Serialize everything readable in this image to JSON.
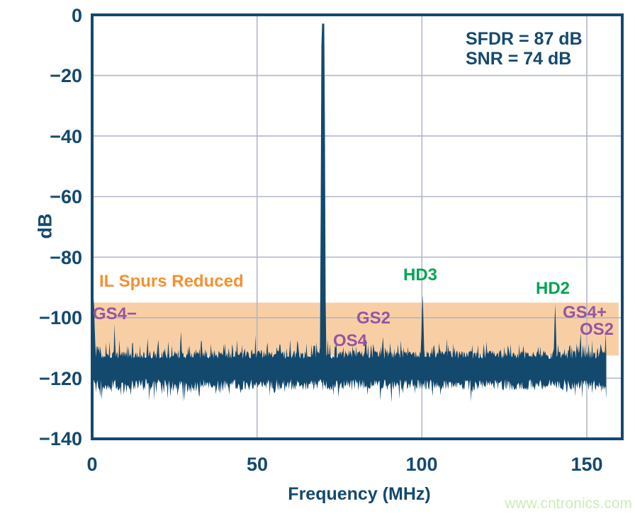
{
  "watermark": {
    "text": "www.cntronics.com",
    "color": "#cdecb9"
  },
  "annotations": {
    "sfdr": "SFDR = 87 dB",
    "snr": "SNR = 74 dB"
  },
  "chart_data": {
    "type": "line",
    "title": "",
    "xlabel": "Frequency (MHz)",
    "ylabel": "dB",
    "xlim": [
      0,
      160.8
    ],
    "ylim": [
      -140,
      0
    ],
    "xtick_labels": [
      "0",
      "50",
      "100",
      "150"
    ],
    "xtick_values": [
      0,
      50,
      100,
      150
    ],
    "ytick_labels": [
      "0",
      "−20",
      "−40",
      "−60",
      "−80",
      "−100",
      "−120",
      "−140"
    ],
    "ytick_values": [
      0,
      -20,
      -40,
      -60,
      -80,
      -100,
      -120,
      -140
    ],
    "grid": true,
    "legend": "none",
    "highlight_band": {
      "label": "IL Spurs Reduced",
      "y_top_db": -95,
      "y_bottom_db": -112.5,
      "color": "#f7c795",
      "label_color": "#f3912f"
    },
    "fundamental": {
      "freq_mhz": 70,
      "level_db": -2.9
    },
    "noise_floor": {
      "top_db": -113.5,
      "bottom_db": -121,
      "mean_db": -117,
      "max_freq_mhz": 156
    },
    "spur_labels": [
      {
        "text": "GS4−",
        "freq_mhz": 6.8,
        "color": "#9655a0"
      },
      {
        "text": "OS4",
        "freq_mhz": 78,
        "color": "#9655a0"
      },
      {
        "text": "GS2",
        "freq_mhz": 85.3,
        "color": "#9655a0"
      },
      {
        "text": "HD3",
        "freq_mhz": 100.2,
        "color": "#00a551"
      },
      {
        "text": "HD2",
        "freq_mhz": 140.4,
        "color": "#00a551"
      },
      {
        "text": "GS4+",
        "freq_mhz": 148.1,
        "color": "#9655a0"
      },
      {
        "text": "OS2",
        "freq_mhz": 153.2,
        "color": "#9655a0"
      }
    ],
    "spurs": [
      [
        0.5,
        -92
      ],
      [
        1.5,
        -105
      ],
      [
        2.4,
        -106.5
      ],
      [
        4.1,
        -108
      ],
      [
        6.8,
        -100.8
      ],
      [
        9.5,
        -108.5
      ],
      [
        12.2,
        -106.8
      ],
      [
        14.5,
        -108.8
      ],
      [
        16.8,
        -103.8
      ],
      [
        19.8,
        -105.8
      ],
      [
        22.1,
        -107
      ],
      [
        24.5,
        -108.5
      ],
      [
        27,
        -103.3
      ],
      [
        29.5,
        -107
      ],
      [
        33,
        -107.5
      ],
      [
        36,
        -108.5
      ],
      [
        39.8,
        -108.3
      ],
      [
        42.5,
        -106.3
      ],
      [
        45.5,
        -108.8
      ],
      [
        49.5,
        -104.3
      ],
      [
        53,
        -108.5
      ],
      [
        57,
        -106.5
      ],
      [
        60,
        -104.5
      ],
      [
        62.5,
        -105.5
      ],
      [
        65,
        -108
      ],
      [
        68,
        -107.5
      ],
      [
        72,
        -107.5
      ],
      [
        75.2,
        -110
      ],
      [
        78,
        -108.8
      ],
      [
        81.2,
        -110
      ],
      [
        84.5,
        -106.2
      ],
      [
        85.3,
        -104.8
      ],
      [
        88,
        -108.5
      ],
      [
        90.3,
        -105.5
      ],
      [
        92.8,
        -105.8
      ],
      [
        95,
        -109
      ],
      [
        97.4,
        -110
      ],
      [
        100.2,
        -90.3
      ],
      [
        102.5,
        -109
      ],
      [
        104,
        -108.3
      ],
      [
        107.9,
        -108.4
      ],
      [
        110,
        -109
      ],
      [
        113,
        -108.6
      ],
      [
        116,
        -109
      ],
      [
        120.3,
        -109.3
      ],
      [
        122.9,
        -109
      ],
      [
        125,
        -108
      ],
      [
        127.9,
        -108.8
      ],
      [
        130,
        -109
      ],
      [
        132.2,
        -108.8
      ],
      [
        135,
        -108.5
      ],
      [
        138.2,
        -108.8
      ],
      [
        140.4,
        -93.8
      ],
      [
        143.3,
        -107.3
      ],
      [
        144.8,
        -107.8
      ],
      [
        146.3,
        -108.5
      ],
      [
        148.1,
        -101.9
      ],
      [
        150,
        -107.5
      ],
      [
        151.6,
        -106.8
      ],
      [
        153.2,
        -107.2
      ],
      [
        154.5,
        -105.8
      ],
      [
        155.7,
        -104.5
      ]
    ],
    "colors": {
      "trace": "#14496e",
      "grid": "#afb4c8",
      "axis_text": "#14496e"
    }
  }
}
